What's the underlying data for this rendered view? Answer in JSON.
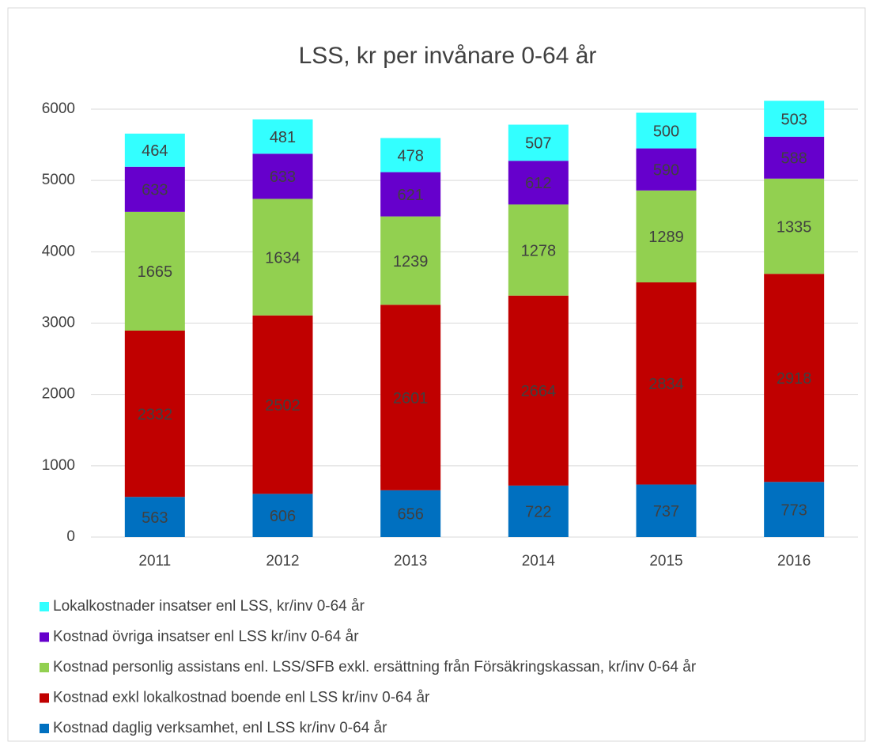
{
  "chart_data": {
    "type": "stacked_bar",
    "title": "LSS, kr per invånare 0-64 år",
    "categories": [
      "2011",
      "2012",
      "2013",
      "2014",
      "2015",
      "2016"
    ],
    "series": [
      {
        "name": "Kostnad daglig verksamhet, enl LSS kr/inv 0-64 år",
        "color": "#0070c0",
        "values": [
          563,
          606,
          656,
          722,
          737,
          773
        ]
      },
      {
        "name": "Kostnad exkl lokalkostnad boende enl LSS kr/inv 0-64 år",
        "color": "#c00000",
        "values": [
          2332,
          2502,
          2601,
          2664,
          2834,
          2918
        ]
      },
      {
        "name": "Kostnad personlig assistans enl. LSS/SFB exkl. ersättning från Försäkringskassan, kr/inv 0-64 år",
        "color": "#92d050",
        "values": [
          1665,
          1634,
          1239,
          1278,
          1289,
          1335
        ]
      },
      {
        "name": "Kostnad övriga insatser enl LSS kr/inv 0-64 år",
        "color": "#6600cc",
        "values": [
          633,
          633,
          621,
          612,
          590,
          588
        ]
      },
      {
        "name": "Lokalkostnader insatser enl LSS, kr/inv 0-64 år",
        "color": "#33ffff",
        "values": [
          464,
          481,
          478,
          507,
          500,
          503
        ]
      }
    ],
    "ylim": [
      0,
      6000
    ],
    "yticks": [
      0,
      1000,
      2000,
      3000,
      4000,
      5000,
      6000
    ],
    "grid": true
  }
}
